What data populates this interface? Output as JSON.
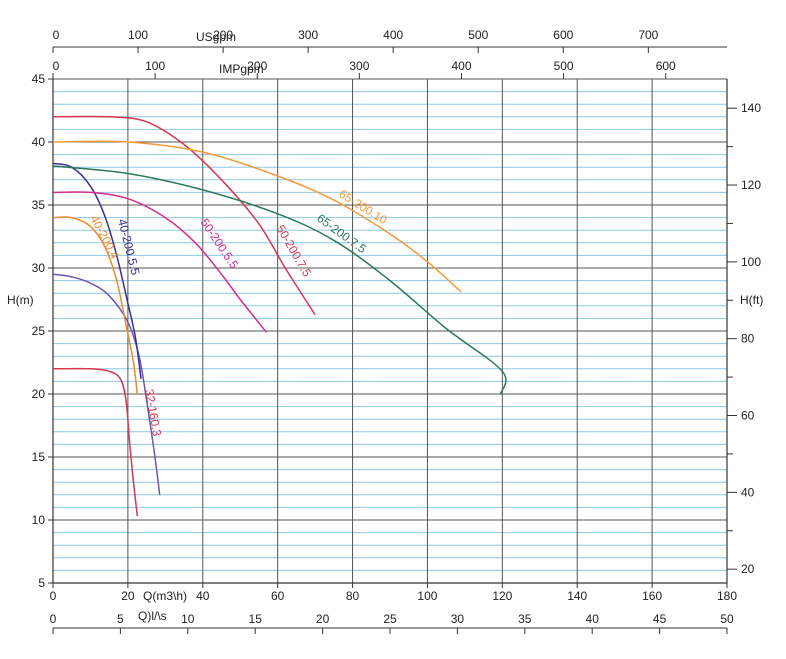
{
  "chart_data": {
    "type": "line",
    "axes": {
      "x_m3h": {
        "label": "Q(m3\\h)",
        "range": [
          0,
          180
        ],
        "ticks": [
          "0",
          "20",
          "40",
          "60",
          "80",
          "100",
          "120",
          "140",
          "160",
          "180"
        ],
        "tick_values": [
          0,
          20,
          40,
          60,
          80,
          100,
          120,
          140,
          160,
          180
        ]
      },
      "x_ls": {
        "label": "Q)l/\\s",
        "range": [
          0,
          50
        ],
        "ticks": [
          "0",
          "5",
          "10",
          "15",
          "20",
          "25",
          "30",
          "35",
          "40",
          "45",
          "50"
        ],
        "tick_values": [
          0,
          5,
          10,
          15,
          20,
          25,
          30,
          35,
          40,
          45,
          50
        ]
      },
      "x_usgpm": {
        "label": "USgpm",
        "range": [
          0,
          792.5
        ],
        "ticks": [
          "0",
          "100",
          "200",
          "300",
          "400",
          "500",
          "600",
          "700"
        ],
        "tick_values": [
          0,
          100,
          200,
          300,
          400,
          500,
          600,
          700
        ]
      },
      "x_impgpm": {
        "label": "IMPgpm",
        "range": [
          0,
          660
        ],
        "ticks": [
          "0",
          "100",
          "200",
          "300",
          "400",
          "500",
          "600"
        ],
        "tick_values": [
          0,
          100,
          200,
          300,
          400,
          500,
          600
        ]
      },
      "y_m": {
        "label": "H(m)",
        "range": [
          5,
          45
        ],
        "ticks": [
          "5",
          "10",
          "15",
          "20",
          "25",
          "30",
          "35",
          "40",
          "45"
        ],
        "tick_values": [
          5,
          10,
          15,
          20,
          25,
          30,
          35,
          40,
          45
        ]
      },
      "y_ft": {
        "label": "H(ft)",
        "range": [
          16.4,
          147.6
        ],
        "ticks": [
          "20",
          "40",
          "60",
          "80",
          "100",
          "120",
          "140"
        ],
        "tick_values": [
          20,
          40,
          60,
          80,
          100,
          120,
          140
        ]
      }
    },
    "grid": true,
    "series": [
      {
        "name": "32-160.3",
        "color": "#d6374f",
        "points": [
          [
            0,
            22
          ],
          [
            10,
            22
          ],
          [
            15,
            21.8
          ],
          [
            18,
            21.2
          ],
          [
            19.5,
            19.5
          ],
          [
            20.5,
            16
          ],
          [
            21.5,
            13
          ],
          [
            22.5,
            10.3
          ]
        ]
      },
      {
        "name": "",
        "color": "#6f55a8",
        "points": [
          [
            0,
            29.5
          ],
          [
            5,
            29.3
          ],
          [
            10,
            28.8
          ],
          [
            15,
            27.8
          ],
          [
            20,
            25.7
          ],
          [
            23,
            23
          ],
          [
            25,
            19.5
          ],
          [
            27,
            15.5
          ],
          [
            28.5,
            12
          ]
        ]
      },
      {
        "name": "40-200.4",
        "color": "#f08a2c",
        "points": [
          [
            0,
            34
          ],
          [
            5,
            34
          ],
          [
            10,
            33.3
          ],
          [
            14,
            31.6
          ],
          [
            17,
            29
          ],
          [
            19.5,
            25.5
          ],
          [
            21.5,
            22.5
          ],
          [
            22.5,
            20
          ]
        ]
      },
      {
        "name": "40-200.5.5",
        "color": "#3b2f8f",
        "points": [
          [
            0,
            38.3
          ],
          [
            5,
            38
          ],
          [
            10,
            36.5
          ],
          [
            14,
            34
          ],
          [
            17,
            31
          ],
          [
            20,
            27.2
          ],
          [
            22,
            24.5
          ],
          [
            23.5,
            21.2
          ]
        ]
      },
      {
        "name": "50-200.5.5",
        "color": "#d82a8c",
        "points": [
          [
            0,
            36
          ],
          [
            10,
            36
          ],
          [
            20,
            35.5
          ],
          [
            30,
            34
          ],
          [
            38,
            32
          ],
          [
            45,
            29.5
          ],
          [
            50,
            27.5
          ],
          [
            57,
            24.9
          ]
        ]
      },
      {
        "name": "50-200.7.5",
        "color": "#d6374f",
        "points": [
          [
            0,
            42
          ],
          [
            15,
            42
          ],
          [
            25,
            41.6
          ],
          [
            35,
            39.8
          ],
          [
            45,
            37
          ],
          [
            55,
            33.5
          ],
          [
            62,
            30
          ],
          [
            70,
            26.3
          ]
        ]
      },
      {
        "name": "65-200.7.5",
        "color": "#2d7a57",
        "points": [
          [
            0,
            38.1
          ],
          [
            20,
            37.5
          ],
          [
            40,
            36.2
          ],
          [
            60,
            34.3
          ],
          [
            75,
            32.2
          ],
          [
            90,
            29
          ],
          [
            105,
            25.2
          ],
          [
            120,
            21.8
          ],
          [
            119.5,
            20
          ]
        ]
      },
      {
        "name": "65-200.10",
        "color": "#f39a3c",
        "points": [
          [
            0,
            40
          ],
          [
            20,
            40
          ],
          [
            40,
            39.2
          ],
          [
            60,
            37.3
          ],
          [
            75,
            35.4
          ],
          [
            90,
            32.7
          ],
          [
            100,
            30.5
          ],
          [
            109,
            28.1
          ]
        ]
      }
    ]
  }
}
